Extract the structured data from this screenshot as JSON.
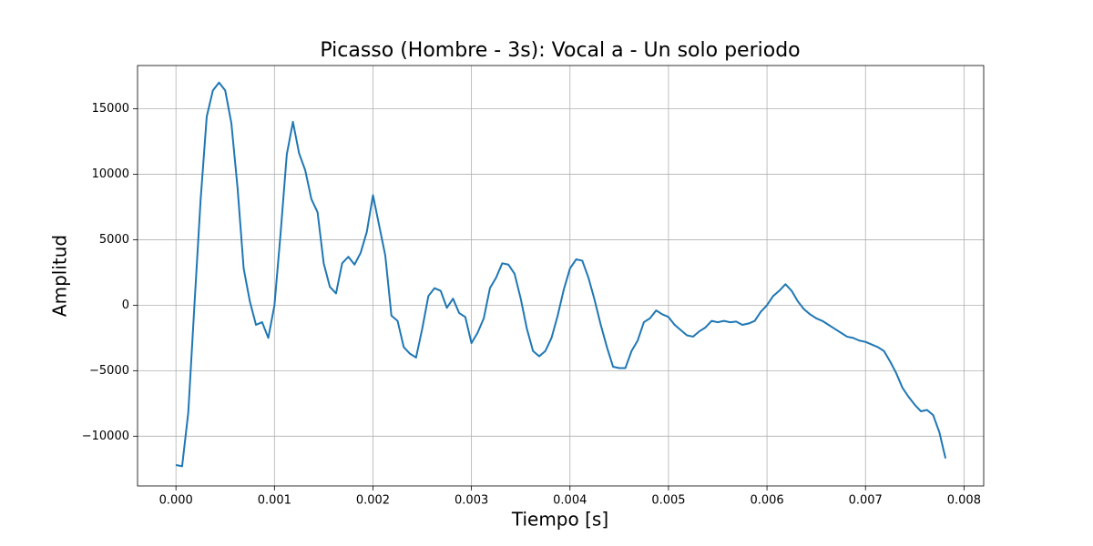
{
  "chart_data": {
    "type": "line",
    "title": "Picasso (Hombre - 3s): Vocal a - Un solo periodo",
    "x_label": "Tiempo [s]",
    "y_label": "Amplitud",
    "x": [
      0,
      6.25e-05,
      0.000125,
      0.0001875,
      0.00025,
      0.0003125,
      0.000375,
      0.0004375,
      0.0005,
      0.0005625,
      0.000625,
      0.0006875,
      0.00075,
      0.0008125,
      0.000875,
      0.0009375,
      0.001,
      0.0010625,
      0.001125,
      0.0011875,
      0.00125,
      0.0013125,
      0.001375,
      0.0014375,
      0.0015,
      0.0015625,
      0.001625,
      0.0016875,
      0.00175,
      0.0018125,
      0.001875,
      0.0019375,
      0.002,
      0.0020625,
      0.002125,
      0.0021875,
      0.00225,
      0.0023125,
      0.002375,
      0.0024375,
      0.0025,
      0.0025625,
      0.002625,
      0.0026875,
      0.00275,
      0.0028125,
      0.002875,
      0.0029375,
      0.003,
      0.0030625,
      0.003125,
      0.0031875,
      0.00325,
      0.0033125,
      0.003375,
      0.0034375,
      0.0035,
      0.0035625,
      0.003625,
      0.0036875,
      0.00375,
      0.0038125,
      0.003875,
      0.0039375,
      0.004,
      0.0040625,
      0.004125,
      0.0041875,
      0.00425,
      0.0043125,
      0.004375,
      0.0044375,
      0.0045,
      0.0045625,
      0.004625,
      0.0046875,
      0.00475,
      0.0048125,
      0.004875,
      0.0049375,
      0.005,
      0.0050625,
      0.005125,
      0.0051875,
      0.00525,
      0.0053125,
      0.005375,
      0.0054375,
      0.0055,
      0.0055625,
      0.005625,
      0.0056875,
      0.00575,
      0.0058125,
      0.005875,
      0.0059375,
      0.006,
      0.0060625,
      0.006125,
      0.0061875,
      0.00625,
      0.0063125,
      0.006375,
      0.0064375,
      0.0065,
      0.0065625,
      0.006625,
      0.0066875,
      0.00675,
      0.0068125,
      0.006875,
      0.0069375,
      0.007,
      0.0070625,
      0.007125,
      0.0071875,
      0.00725,
      0.0073125,
      0.007375,
      0.0074375,
      0.0075,
      0.0075625,
      0.007625,
      0.0076875,
      0.00775,
      0.0078125
    ],
    "series": [
      {
        "name": "Amplitud",
        "color": "#1f77b4",
        "values": [
          -12200,
          -12300,
          -8200,
          0,
          8000,
          14400,
          16400,
          17000,
          16400,
          13900,
          9000,
          2800,
          300,
          -1500,
          -1300,
          -2500,
          0,
          5500,
          11500,
          14000,
          11600,
          10300,
          8100,
          7100,
          3200,
          1400,
          900,
          3200,
          3700,
          3100,
          4000,
          5600,
          8400,
          6100,
          3800,
          -800,
          -1200,
          -3200,
          -3700,
          -4000,
          -1800,
          700,
          1300,
          1100,
          -200,
          500,
          -600,
          -900,
          -2900,
          -2100,
          -1000,
          1300,
          2100,
          3200,
          3100,
          2400,
          500,
          -1800,
          -3500,
          -3900,
          -3500,
          -2500,
          -800,
          1200,
          2800,
          3500,
          3400,
          2100,
          400,
          -1500,
          -3200,
          -4700,
          -4800,
          -4800,
          -3500,
          -2700,
          -1300,
          -1000,
          -400,
          -700,
          -900,
          -1500,
          -1900,
          -2300,
          -2400,
          -2000,
          -1700,
          -1200,
          -1300,
          -1200,
          -1300,
          -1250,
          -1500,
          -1400,
          -1200,
          -500,
          0,
          700,
          1100,
          1600,
          1100,
          300,
          -300,
          -700,
          -1000,
          -1200,
          -1500,
          -1800,
          -2100,
          -2400,
          -2500,
          -2700,
          -2800,
          -3000,
          -3200,
          -3500,
          -4300,
          -5200,
          -6300,
          -7000,
          -7600,
          -8100,
          -8000,
          -8400,
          -9700,
          -11700
        ]
      }
    ],
    "xlim": [
      -0.00039,
      0.0082
    ],
    "ylim": [
      -13800,
      18300
    ],
    "xticks": [
      {
        "value": 0,
        "label": "0.000"
      },
      {
        "value": 0.001,
        "label": "0.001"
      },
      {
        "value": 0.002,
        "label": "0.002"
      },
      {
        "value": 0.003,
        "label": "0.003"
      },
      {
        "value": 0.004,
        "label": "0.004"
      },
      {
        "value": 0.005,
        "label": "0.005"
      },
      {
        "value": 0.006,
        "label": "0.006"
      },
      {
        "value": 0.007,
        "label": "0.007"
      },
      {
        "value": 0.008,
        "label": "0.008"
      }
    ],
    "yticks": [
      {
        "value": -10000,
        "label": "−10000"
      },
      {
        "value": -5000,
        "label": "−5000"
      },
      0,
      5000,
      10000,
      15000
    ],
    "grid": true
  }
}
